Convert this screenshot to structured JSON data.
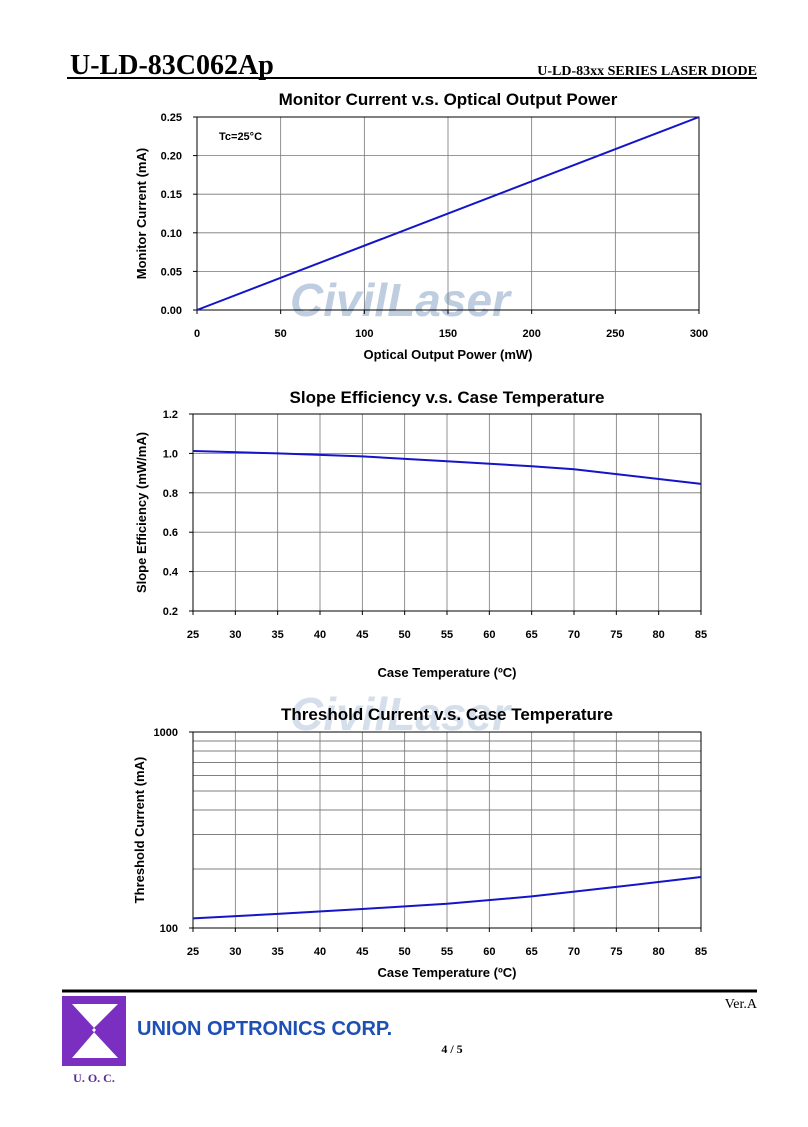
{
  "header": {
    "part_number": "U-LD-83C062Ap",
    "series_title": "U-LD-83xx SERIES LASER DIODE"
  },
  "watermark": "CivilLaser",
  "chart_data": [
    {
      "type": "line",
      "title": "Monitor Current v.s. Optical Output Power",
      "x_label": "Optical Output Power (mW)",
      "y_label": "Monitor Current (mA)",
      "annotation": "Tc=25°C",
      "color": "#1414c8",
      "grid": true,
      "x": [
        0,
        300
      ],
      "values": [
        0,
        0.25
      ],
      "xlim": [
        0,
        300
      ],
      "xticks": [
        0,
        50,
        100,
        150,
        200,
        250,
        300
      ],
      "ylim": [
        0,
        0.25
      ],
      "yticks": [
        {
          "value": 0,
          "label": "0.00"
        },
        0.05,
        {
          "value": 0.1,
          "label": "0.10"
        },
        0.15,
        {
          "value": 0.2,
          "label": "0.20"
        },
        0.25
      ]
    },
    {
      "type": "line",
      "title": "Slope Efficiency v.s. Case Temperature",
      "x_label": "Case Temperature (ºC)",
      "y_label": "Slope Efficiency (mW/mA)",
      "color": "#1414c8",
      "grid": true,
      "x": [
        25,
        35,
        45,
        55,
        65,
        70,
        85
      ],
      "values": [
        1.012,
        1.0,
        0.985,
        0.96,
        0.935,
        0.92,
        0.845
      ],
      "xlim": [
        25,
        85
      ],
      "xticks": [
        25,
        30,
        35,
        40,
        45,
        50,
        55,
        60,
        65,
        70,
        75,
        80,
        85
      ],
      "ylim": [
        0.2,
        1.2
      ],
      "yticks": [
        0.2,
        0.4,
        0.6,
        0.8,
        {
          "value": 1,
          "label": "1.0"
        },
        1.2
      ]
    },
    {
      "type": "line",
      "title": "Threshold Current v.s. Case Temperature",
      "x_label": "Case Temperature (ºC)",
      "y_label": "Threshold Current (mA)",
      "color": "#1414c8",
      "grid": true,
      "log_scale": true,
      "minor_grid": true,
      "x": [
        25,
        35,
        45,
        55,
        65,
        75,
        85
      ],
      "values": [
        112,
        118,
        125,
        133,
        145,
        162,
        182
      ],
      "xlim": [
        25,
        85
      ],
      "xticks": [
        25,
        30,
        35,
        40,
        45,
        50,
        55,
        60,
        65,
        70,
        75,
        80,
        85
      ],
      "ylim": [
        100,
        1000
      ],
      "yticks": [
        100,
        1000
      ]
    }
  ],
  "footer": {
    "version": "Ver.A",
    "company": "UNION OPTRONICS CORP.",
    "page": "4 / 5",
    "logo_text": "U.  O.  C."
  }
}
